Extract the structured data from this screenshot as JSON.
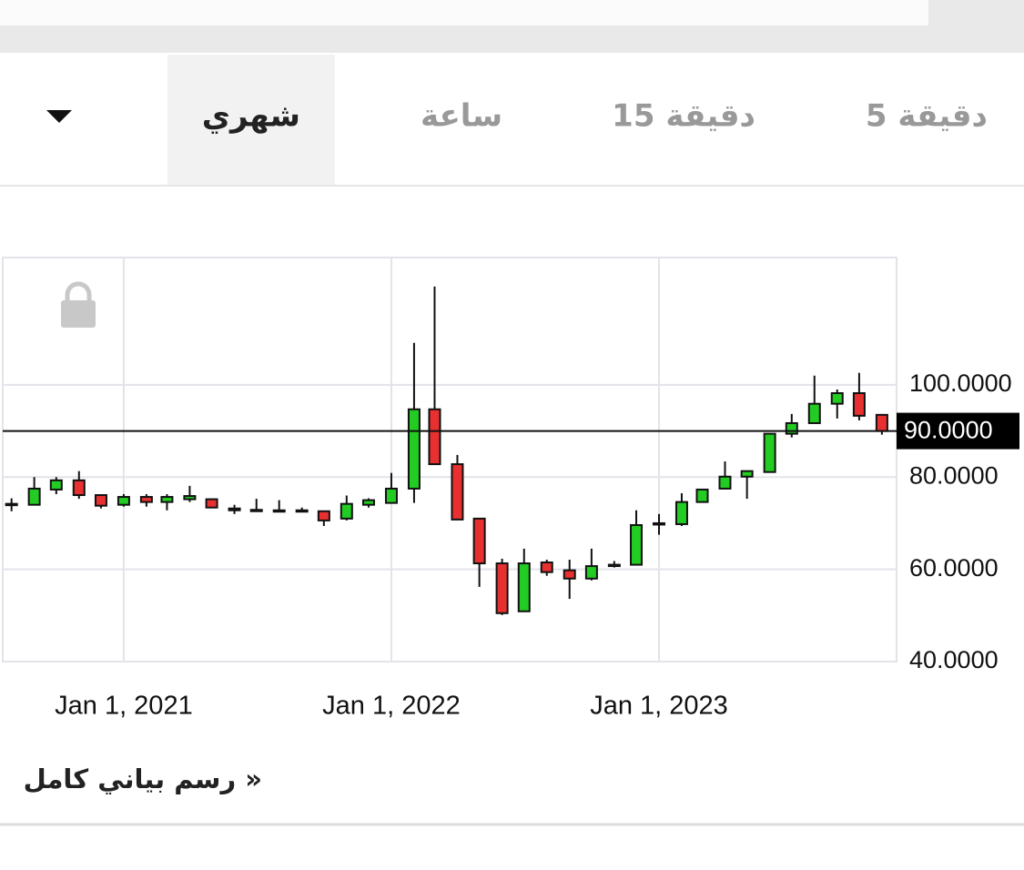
{
  "tabs": [
    "5 دقيقة",
    "15 دقيقة",
    "ساعة",
    "شهري"
  ],
  "full_chart_link": "رسم بياني كامل »",
  "chart_data": {
    "type": "candlestick",
    "x": [
      "2020-08-01",
      "2020-09-01",
      "2020-10-01",
      "2020-11-01",
      "2020-12-01",
      "2021-01-01",
      "2021-02-01",
      "2021-03-01",
      "2021-04-01",
      "2021-05-01",
      "2021-06-01",
      "2021-07-01",
      "2021-08-01",
      "2021-09-01",
      "2021-10-01",
      "2021-11-01",
      "2021-12-01",
      "2022-01-01",
      "2022-02-01",
      "2022-03-01",
      "2022-04-01",
      "2022-05-01",
      "2022-06-01",
      "2022-07-01",
      "2022-08-01",
      "2022-09-01",
      "2022-10-01",
      "2022-11-01",
      "2022-12-01",
      "2023-01-01",
      "2023-02-01",
      "2023-03-01",
      "2023-04-01",
      "2023-05-01",
      "2023-06-01",
      "2023-07-01",
      "2023-08-01",
      "2023-09-01",
      "2023-10-01",
      "2023-11-01"
    ],
    "open": [
      74,
      74,
      77.3,
      79.3,
      76.1,
      74,
      75.7,
      74.6,
      75.2,
      75.2,
      73.2,
      72.9,
      72.7,
      72.8,
      72.6,
      71,
      74,
      74.4,
      77.5,
      94.7,
      82.8,
      71,
      61.3,
      50.9,
      61.5,
      59.8,
      58,
      60.8,
      61,
      69.9,
      69.8,
      74.6,
      77.5,
      80.1,
      81.1,
      89.4,
      91.7,
      95.9,
      98.2,
      93.5
    ],
    "high": [
      75.4,
      80,
      80,
      81.3,
      76.1,
      76.3,
      76.3,
      76.3,
      78.1,
      75.2,
      74,
      75.3,
      75,
      73.4,
      72.6,
      76,
      75.4,
      80.9,
      109.1,
      121.3,
      84.8,
      71,
      62.3,
      64.5,
      62.1,
      62.1,
      64.5,
      61.8,
      72.8,
      72,
      76.5,
      77.3,
      83.4,
      81.3,
      89.4,
      93.7,
      102,
      99,
      102.6,
      93.5
    ],
    "low": [
      72.6,
      74,
      76.3,
      75.3,
      73.2,
      73.6,
      73.6,
      72.8,
      74.6,
      73.4,
      72,
      72.6,
      72.6,
      72.6,
      69.4,
      70.6,
      73.4,
      74.4,
      74.4,
      82.8,
      70.8,
      56.2,
      50.1,
      50.9,
      58.6,
      53.6,
      57.6,
      60.4,
      61,
      67.5,
      69.4,
      74.6,
      77.5,
      75.3,
      81.1,
      88.6,
      91.7,
      92.7,
      92.3,
      89.2
    ],
    "close": [
      74.2,
      77.5,
      79.3,
      76.1,
      73.8,
      75.7,
      74.6,
      75.7,
      75.9,
      73.4,
      72.8,
      72.7,
      72.8,
      72.7,
      70.6,
      74.2,
      75,
      77.5,
      94.7,
      82.8,
      70.8,
      61.3,
      50.5,
      61.3,
      59.4,
      58,
      60.7,
      61,
      69.6,
      70,
      74.6,
      77.3,
      80.1,
      81.3,
      89.4,
      91.7,
      95.9,
      98.2,
      93.3,
      90
    ],
    "up_color": "#22cc22",
    "down_color": "#e83030",
    "xlim": [
      "2020-07-20",
      "2023-11-21"
    ],
    "xticks": [
      {
        "value": "2021-01-01",
        "label": "Jan 1, 2021"
      },
      {
        "value": "2022-01-01",
        "label": "Jan 1, 2022"
      },
      {
        "value": "2023-01-01",
        "label": "Jan 1, 2023"
      }
    ],
    "ylim": [
      40,
      127.6
    ],
    "yticks": [
      {
        "value": 40,
        "label": "40.0000"
      },
      {
        "value": 60,
        "label": "60.0000"
      },
      {
        "value": 80,
        "label": "80.0000"
      },
      {
        "value": 100,
        "label": "100.0000"
      }
    ],
    "last_price": {
      "value": 90,
      "label": "90.0000"
    },
    "grid": true
  }
}
